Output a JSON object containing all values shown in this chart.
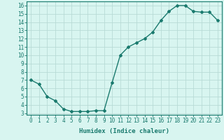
{
  "x": [
    0,
    1,
    2,
    3,
    4,
    5,
    6,
    7,
    8,
    9,
    10,
    11,
    12,
    13,
    14,
    15,
    16,
    17,
    18,
    19,
    20,
    21,
    22,
    23
  ],
  "y": [
    7.0,
    6.5,
    5.0,
    4.5,
    3.5,
    3.2,
    3.2,
    3.2,
    3.3,
    3.3,
    6.7,
    10.0,
    11.0,
    11.5,
    12.0,
    12.8,
    14.2,
    15.3,
    16.0,
    16.0,
    15.3,
    15.2,
    15.2,
    14.2
  ],
  "line_color": "#1a7a6e",
  "marker": "D",
  "marker_size": 2,
  "background_color": "#d8f5f0",
  "grid_color": "#b8dbd6",
  "xlabel": "Humidex (Indice chaleur)",
  "xlim": [
    -0.5,
    23.5
  ],
  "ylim": [
    2.8,
    16.5
  ],
  "yticks": [
    3,
    4,
    5,
    6,
    7,
    8,
    9,
    10,
    11,
    12,
    13,
    14,
    15,
    16
  ],
  "xticks": [
    0,
    1,
    2,
    3,
    4,
    5,
    6,
    7,
    8,
    9,
    10,
    11,
    12,
    13,
    14,
    15,
    16,
    17,
    18,
    19,
    20,
    21,
    22,
    23
  ],
  "tick_fontsize": 5.5,
  "xlabel_fontsize": 6.5,
  "line_width": 1.0
}
